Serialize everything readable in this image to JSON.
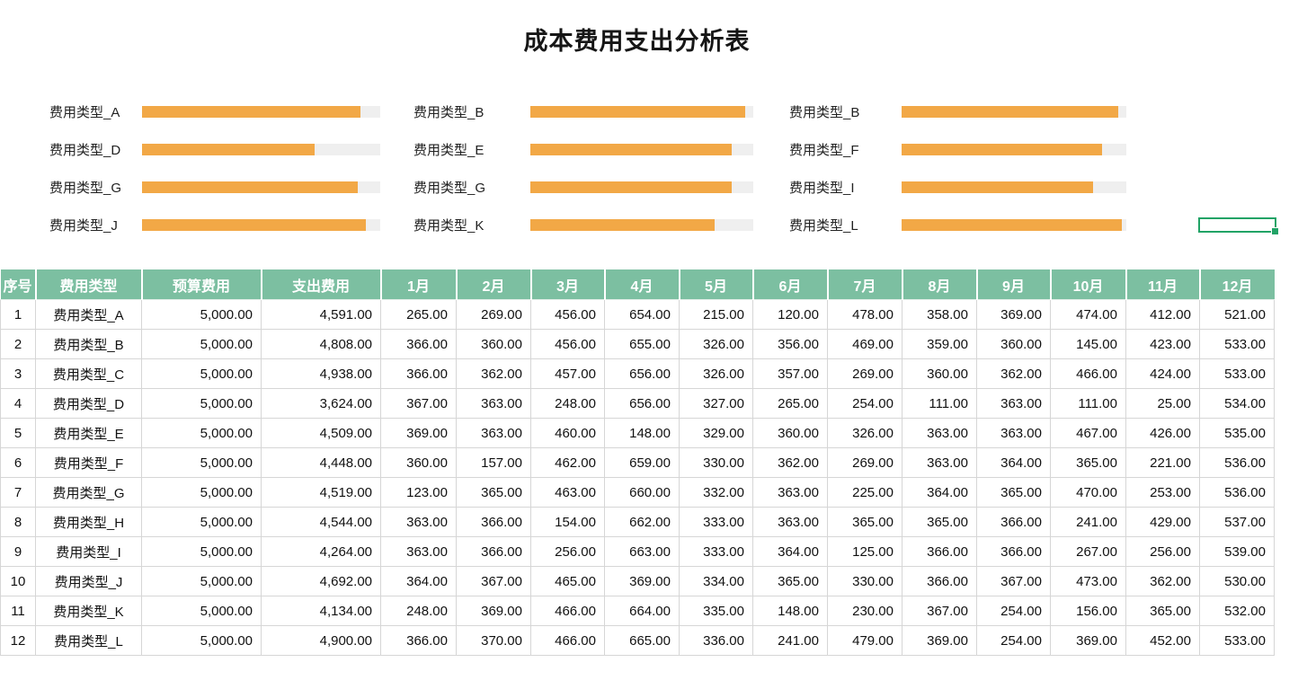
{
  "title": "成本费用支出分析表",
  "colors": {
    "bar_fill": "#F2A846",
    "bar_track": "#EFEFEF",
    "header_green": "#7CBFA1",
    "selection_green": "#21A366",
    "grid_border": "#D6D6D6"
  },
  "bar_chart": {
    "type": "bar",
    "note": "progress bars = 支出费用 / 预算费用",
    "columns": [
      {
        "bars": [
          {
            "label": "费用类型_A",
            "percent": 91.8
          },
          {
            "label": "费用类型_D",
            "percent": 72.5
          },
          {
            "label": "费用类型_G",
            "percent": 90.4
          },
          {
            "label": "费用类型_J",
            "percent": 93.8
          }
        ]
      },
      {
        "bars": [
          {
            "label": "费用类型_B",
            "percent": 96.2
          },
          {
            "label": "费用类型_E",
            "percent": 90.2
          },
          {
            "label": "费用类型_G",
            "percent": 90.4
          },
          {
            "label": "费用类型_K",
            "percent": 82.7
          }
        ]
      },
      {
        "bars": [
          {
            "label": "费用类型_B",
            "percent": 96.2
          },
          {
            "label": "费用类型_F",
            "percent": 89.0
          },
          {
            "label": "费用类型_I",
            "percent": 85.3
          },
          {
            "label": "费用类型_L",
            "percent": 98.0
          }
        ]
      }
    ]
  },
  "table": {
    "headers": [
      "序号",
      "费用类型",
      "预算费用",
      "支出费用",
      "1月",
      "2月",
      "3月",
      "4月",
      "5月",
      "6月",
      "7月",
      "8月",
      "9月",
      "10月",
      "11月",
      "12月"
    ],
    "rows": [
      [
        "1",
        "费用类型_A",
        "5,000.00",
        "4,591.00",
        "265.00",
        "269.00",
        "456.00",
        "654.00",
        "215.00",
        "120.00",
        "478.00",
        "358.00",
        "369.00",
        "474.00",
        "412.00",
        "521.00"
      ],
      [
        "2",
        "费用类型_B",
        "5,000.00",
        "4,808.00",
        "366.00",
        "360.00",
        "456.00",
        "655.00",
        "326.00",
        "356.00",
        "469.00",
        "359.00",
        "360.00",
        "145.00",
        "423.00",
        "533.00"
      ],
      [
        "3",
        "费用类型_C",
        "5,000.00",
        "4,938.00",
        "366.00",
        "362.00",
        "457.00",
        "656.00",
        "326.00",
        "357.00",
        "269.00",
        "360.00",
        "362.00",
        "466.00",
        "424.00",
        "533.00"
      ],
      [
        "4",
        "费用类型_D",
        "5,000.00",
        "3,624.00",
        "367.00",
        "363.00",
        "248.00",
        "656.00",
        "327.00",
        "265.00",
        "254.00",
        "111.00",
        "363.00",
        "111.00",
        "25.00",
        "534.00"
      ],
      [
        "5",
        "费用类型_E",
        "5,000.00",
        "4,509.00",
        "369.00",
        "363.00",
        "460.00",
        "148.00",
        "329.00",
        "360.00",
        "326.00",
        "363.00",
        "363.00",
        "467.00",
        "426.00",
        "535.00"
      ],
      [
        "6",
        "费用类型_F",
        "5,000.00",
        "4,448.00",
        "360.00",
        "157.00",
        "462.00",
        "659.00",
        "330.00",
        "362.00",
        "269.00",
        "363.00",
        "364.00",
        "365.00",
        "221.00",
        "536.00"
      ],
      [
        "7",
        "费用类型_G",
        "5,000.00",
        "4,519.00",
        "123.00",
        "365.00",
        "463.00",
        "660.00",
        "332.00",
        "363.00",
        "225.00",
        "364.00",
        "365.00",
        "470.00",
        "253.00",
        "536.00"
      ],
      [
        "8",
        "费用类型_H",
        "5,000.00",
        "4,544.00",
        "363.00",
        "366.00",
        "154.00",
        "662.00",
        "333.00",
        "363.00",
        "365.00",
        "365.00",
        "366.00",
        "241.00",
        "429.00",
        "537.00"
      ],
      [
        "9",
        "费用类型_I",
        "5,000.00",
        "4,264.00",
        "363.00",
        "366.00",
        "256.00",
        "663.00",
        "333.00",
        "364.00",
        "125.00",
        "366.00",
        "366.00",
        "267.00",
        "256.00",
        "539.00"
      ],
      [
        "10",
        "费用类型_J",
        "5,000.00",
        "4,692.00",
        "364.00",
        "367.00",
        "465.00",
        "369.00",
        "334.00",
        "365.00",
        "330.00",
        "366.00",
        "367.00",
        "473.00",
        "362.00",
        "530.00"
      ],
      [
        "11",
        "费用类型_K",
        "5,000.00",
        "4,134.00",
        "248.00",
        "369.00",
        "466.00",
        "664.00",
        "335.00",
        "148.00",
        "230.00",
        "367.00",
        "254.00",
        "156.00",
        "365.00",
        "532.00"
      ],
      [
        "12",
        "费用类型_L",
        "5,000.00",
        "4,900.00",
        "366.00",
        "370.00",
        "466.00",
        "665.00",
        "336.00",
        "241.00",
        "479.00",
        "369.00",
        "254.00",
        "369.00",
        "452.00",
        "533.00"
      ]
    ]
  }
}
